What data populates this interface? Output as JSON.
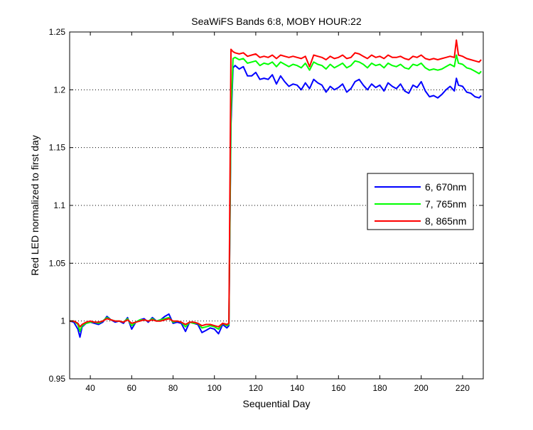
{
  "chart_data": {
    "type": "line",
    "title": "SeaWiFS Bands 6:8, MOBY HOUR:22",
    "xlabel": "Sequential Day",
    "ylabel": "Red LED normalized to first day",
    "xlim": [
      30,
      230
    ],
    "ylim": [
      0.95,
      1.25
    ],
    "xticks": [
      40,
      60,
      80,
      100,
      120,
      140,
      160,
      180,
      200,
      220
    ],
    "yticks": [
      0.95,
      1,
      1.05,
      1.1,
      1.15,
      1.2,
      1.25
    ],
    "grid": "horizontal dotted",
    "legend_position": "right",
    "series": [
      {
        "name": "6, 670nm",
        "color": "#0000ff",
        "x": [
          30,
          32,
          34,
          35,
          36,
          38,
          40,
          42,
          44,
          46,
          48,
          50,
          52,
          54,
          56,
          58,
          60,
          62,
          64,
          66,
          68,
          70,
          72,
          74,
          76,
          78,
          80,
          82,
          84,
          86,
          88,
          90,
          92,
          94,
          96,
          98,
          100,
          102,
          104,
          106,
          107,
          108,
          109,
          110,
          112,
          114,
          116,
          118,
          120,
          122,
          124,
          126,
          128,
          130,
          132,
          134,
          136,
          138,
          140,
          142,
          144,
          146,
          148,
          150,
          152,
          154,
          156,
          158,
          160,
          162,
          164,
          166,
          168,
          170,
          172,
          174,
          176,
          178,
          180,
          182,
          184,
          186,
          188,
          190,
          192,
          194,
          196,
          198,
          200,
          202,
          204,
          206,
          208,
          210,
          212,
          214,
          216,
          217,
          218,
          220,
          222,
          224,
          226,
          228,
          229
        ],
        "y": [
          1.0,
          0.999,
          0.993,
          0.986,
          0.995,
          0.998,
          0.999,
          0.998,
          0.997,
          0.999,
          1.004,
          1.001,
          0.999,
          1.0,
          0.998,
          1.003,
          0.993,
          0.999,
          1.001,
          1.002,
          0.999,
          1.003,
          1.0,
          1.001,
          1.004,
          1.006,
          0.998,
          0.999,
          0.998,
          0.991,
          0.999,
          0.998,
          0.997,
          0.99,
          0.992,
          0.994,
          0.993,
          0.989,
          0.997,
          0.994,
          0.996,
          1.17,
          1.219,
          1.221,
          1.218,
          1.22,
          1.212,
          1.212,
          1.215,
          1.209,
          1.21,
          1.209,
          1.213,
          1.205,
          1.212,
          1.207,
          1.203,
          1.205,
          1.204,
          1.2,
          1.206,
          1.201,
          1.209,
          1.206,
          1.204,
          1.198,
          1.203,
          1.2,
          1.202,
          1.205,
          1.198,
          1.201,
          1.207,
          1.209,
          1.204,
          1.2,
          1.205,
          1.202,
          1.204,
          1.199,
          1.206,
          1.203,
          1.201,
          1.205,
          1.199,
          1.197,
          1.204,
          1.202,
          1.207,
          1.199,
          1.194,
          1.195,
          1.193,
          1.196,
          1.2,
          1.203,
          1.199,
          1.21,
          1.204,
          1.203,
          1.198,
          1.197,
          1.194,
          1.193,
          1.195
        ]
      },
      {
        "name": "7, 765nm",
        "color": "#00ff00",
        "x": [
          30,
          32,
          34,
          35,
          36,
          38,
          40,
          42,
          44,
          46,
          48,
          50,
          52,
          54,
          56,
          58,
          60,
          62,
          64,
          66,
          68,
          70,
          72,
          74,
          76,
          78,
          80,
          82,
          84,
          86,
          88,
          90,
          92,
          94,
          96,
          98,
          100,
          102,
          104,
          106,
          107,
          108,
          109,
          110,
          112,
          114,
          116,
          118,
          120,
          122,
          124,
          126,
          128,
          130,
          132,
          134,
          136,
          138,
          140,
          142,
          144,
          146,
          148,
          150,
          152,
          154,
          156,
          158,
          160,
          162,
          164,
          166,
          168,
          170,
          172,
          174,
          176,
          178,
          180,
          182,
          184,
          186,
          188,
          190,
          192,
          194,
          196,
          198,
          200,
          202,
          204,
          206,
          208,
          210,
          212,
          214,
          216,
          217,
          218,
          220,
          222,
          224,
          226,
          228,
          229
        ],
        "y": [
          1.0,
          1.0,
          0.997,
          0.991,
          0.996,
          0.998,
          0.999,
          0.999,
          0.998,
          1.0,
          1.003,
          1.001,
          1.0,
          1.0,
          0.999,
          1.002,
          0.996,
          0.999,
          1.001,
          1.001,
          1.0,
          1.002,
          1.0,
          1.001,
          1.002,
          1.003,
          0.999,
          1.0,
          0.999,
          0.995,
          0.999,
          0.998,
          0.998,
          0.994,
          0.995,
          0.996,
          0.995,
          0.993,
          0.998,
          0.996,
          0.997,
          1.178,
          1.227,
          1.228,
          1.226,
          1.227,
          1.223,
          1.224,
          1.225,
          1.221,
          1.223,
          1.222,
          1.224,
          1.22,
          1.224,
          1.222,
          1.22,
          1.222,
          1.221,
          1.219,
          1.223,
          1.217,
          1.224,
          1.222,
          1.221,
          1.218,
          1.222,
          1.219,
          1.221,
          1.223,
          1.219,
          1.221,
          1.225,
          1.224,
          1.222,
          1.219,
          1.223,
          1.221,
          1.222,
          1.219,
          1.223,
          1.221,
          1.22,
          1.222,
          1.219,
          1.218,
          1.222,
          1.221,
          1.223,
          1.219,
          1.217,
          1.218,
          1.217,
          1.218,
          1.22,
          1.222,
          1.22,
          1.23,
          1.223,
          1.222,
          1.219,
          1.218,
          1.216,
          1.214,
          1.216
        ]
      },
      {
        "name": "8, 865nm",
        "color": "#ff0000",
        "x": [
          30,
          32,
          34,
          35,
          36,
          38,
          40,
          42,
          44,
          46,
          48,
          50,
          52,
          54,
          56,
          58,
          60,
          62,
          64,
          66,
          68,
          70,
          72,
          74,
          76,
          78,
          80,
          82,
          84,
          86,
          88,
          90,
          92,
          94,
          96,
          98,
          100,
          102,
          104,
          106,
          107,
          108,
          109,
          110,
          112,
          114,
          116,
          118,
          120,
          122,
          124,
          126,
          128,
          130,
          132,
          134,
          136,
          138,
          140,
          142,
          144,
          146,
          148,
          150,
          152,
          154,
          156,
          158,
          160,
          162,
          164,
          166,
          168,
          170,
          172,
          174,
          176,
          178,
          180,
          182,
          184,
          186,
          188,
          190,
          192,
          194,
          196,
          198,
          200,
          202,
          204,
          206,
          208,
          210,
          212,
          214,
          216,
          217,
          218,
          220,
          222,
          224,
          226,
          228,
          229
        ],
        "y": [
          1.0,
          1.0,
          0.998,
          0.995,
          0.997,
          0.999,
          1.0,
          0.999,
          0.999,
          1.0,
          1.002,
          1.001,
          1.0,
          1.0,
          0.999,
          1.001,
          0.998,
          0.999,
          1.0,
          1.001,
          1.0,
          1.001,
          1.0,
          1.0,
          1.001,
          1.002,
          1.0,
          1.0,
          0.999,
          0.997,
          0.999,
          0.999,
          0.998,
          0.996,
          0.997,
          0.997,
          0.996,
          0.995,
          0.998,
          0.997,
          0.998,
          1.235,
          1.233,
          1.232,
          1.231,
          1.232,
          1.229,
          1.23,
          1.231,
          1.228,
          1.229,
          1.228,
          1.23,
          1.227,
          1.23,
          1.229,
          1.228,
          1.229,
          1.228,
          1.227,
          1.229,
          1.22,
          1.23,
          1.229,
          1.228,
          1.226,
          1.229,
          1.227,
          1.228,
          1.23,
          1.227,
          1.228,
          1.232,
          1.231,
          1.229,
          1.227,
          1.23,
          1.228,
          1.229,
          1.227,
          1.23,
          1.228,
          1.228,
          1.229,
          1.227,
          1.226,
          1.229,
          1.228,
          1.23,
          1.227,
          1.226,
          1.227,
          1.226,
          1.227,
          1.228,
          1.229,
          1.228,
          1.243,
          1.23,
          1.229,
          1.227,
          1.226,
          1.225,
          1.224,
          1.226
        ]
      }
    ]
  }
}
